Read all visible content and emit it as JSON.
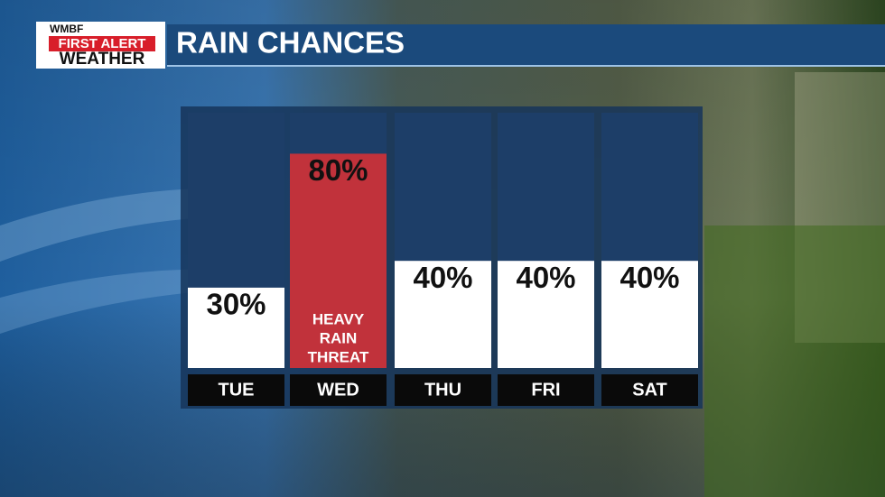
{
  "logo": {
    "line1": "WMBF",
    "line2": "FIRST ALERT",
    "line3": "WEATHER"
  },
  "chart_data": {
    "type": "bar",
    "title": "RAIN CHANCES",
    "categories": [
      "TUE",
      "WED",
      "THU",
      "FRI",
      "SAT"
    ],
    "values": [
      30,
      80,
      40,
      40,
      40
    ],
    "value_labels": [
      "30%",
      "80%",
      "40%",
      "40%",
      "40%"
    ],
    "colors": [
      "#ffffff",
      "#c1323b",
      "#ffffff",
      "#ffffff",
      "#ffffff"
    ],
    "annotation": [
      "HEAVY",
      "RAIN",
      "THREAT"
    ]
  }
}
